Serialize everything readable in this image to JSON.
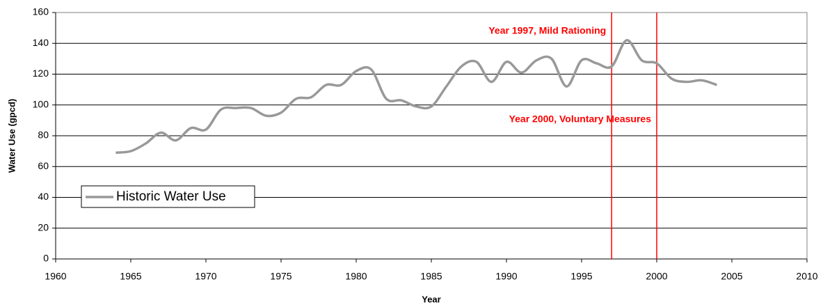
{
  "chart_data": {
    "type": "line",
    "x_label": "Year",
    "y_label": "Water Use (gpcd)",
    "x": [
      1964,
      1965,
      1966,
      1967,
      1968,
      1969,
      1970,
      1971,
      1972,
      1973,
      1974,
      1975,
      1976,
      1977,
      1978,
      1979,
      1980,
      1981,
      1982,
      1983,
      1984,
      1985,
      1986,
      1987,
      1988,
      1989,
      1990,
      1991,
      1992,
      1993,
      1994,
      1995,
      1996,
      1997,
      1998,
      1999,
      2000,
      2001,
      2002,
      2003,
      2004
    ],
    "series": [
      {
        "name": "Historic Water Use",
        "color": "#999999",
        "values": [
          69,
          70,
          75,
          82,
          77,
          85,
          84,
          97,
          98,
          98,
          93,
          95,
          104,
          105,
          113,
          113,
          122,
          123,
          104,
          103,
          99,
          99,
          112,
          125,
          128,
          115,
          128,
          121,
          129,
          130,
          112,
          129,
          127,
          125,
          142,
          129,
          127,
          117,
          115,
          116,
          113
        ]
      }
    ],
    "xlim": [
      1960,
      2010
    ],
    "xticks": [
      1960,
      1965,
      1970,
      1975,
      1980,
      1985,
      1990,
      1995,
      2000,
      2005,
      2010
    ],
    "ylim": [
      0,
      160
    ],
    "yticks": [
      0,
      20,
      40,
      60,
      80,
      100,
      120,
      140,
      160
    ],
    "grid": true,
    "legend": "lower left",
    "smooth": true,
    "markers": [
      {
        "x": 1997,
        "label": "Year 1997, Mild Rationing",
        "color": "#ff0000"
      },
      {
        "x": 2000,
        "label": "Year 2000, Voluntary Measures",
        "color": "#ff0000"
      }
    ]
  }
}
